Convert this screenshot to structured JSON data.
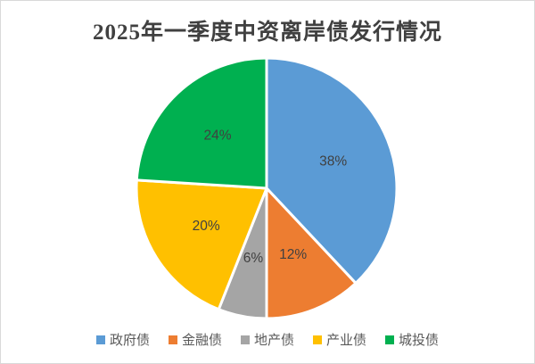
{
  "title": "2025年一季度中资离岸债发行情况",
  "chart_data": {
    "type": "pie",
    "title": "2025年一季度中资离岸债发行情况",
    "categories": [
      "政府债",
      "金融债",
      "地产债",
      "产业债",
      "城投债"
    ],
    "values": [
      38,
      12,
      6,
      20,
      24
    ],
    "data_labels": [
      "38%",
      "12%",
      "6%",
      "20%",
      "24%"
    ],
    "colors": [
      "#5B9BD5",
      "#ED7D31",
      "#A5A5A5",
      "#FFC000",
      "#00B050"
    ],
    "start_angle_deg": 0,
    "direction": "clockwise",
    "legend_position": "bottom",
    "slice_border_color": "#FFFFFF",
    "label_color": "#404040",
    "legend_text_color": "#595959",
    "title_color": "#404040"
  }
}
